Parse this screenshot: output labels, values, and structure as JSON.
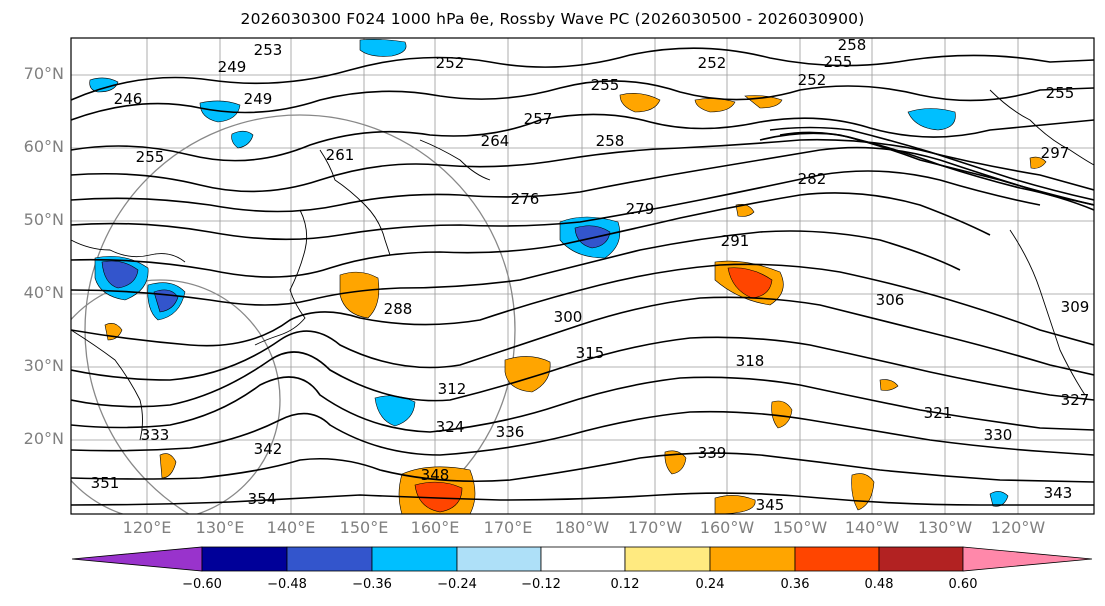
{
  "map": {
    "title": "2026030300 F024 1000 hPa θe, Rossby Wave PC (2026030500 - 2026030900)",
    "lat_labels": [
      "70°N",
      "60°N",
      "50°N",
      "40°N",
      "30°N",
      "20°N"
    ],
    "lon_labels": [
      "120°E",
      "130°E",
      "140°E",
      "150°E",
      "160°E",
      "170°E",
      "180°W",
      "170°W",
      "160°W",
      "150°W",
      "140°W",
      "130°W",
      "120°W"
    ],
    "contour_labels": [
      "253",
      "258",
      "249",
      "252",
      "252",
      "255",
      "246",
      "249",
      "255",
      "252",
      "255",
      "257",
      "258",
      "264",
      "261",
      "255",
      "276",
      "279",
      "282",
      "291",
      "297",
      "288",
      "300",
      "306",
      "315",
      "318",
      "312",
      "321",
      "327",
      "324",
      "336",
      "330",
      "333",
      "342",
      "339",
      "348",
      "351",
      "354",
      "345",
      "343",
      "309"
    ],
    "colorbar": {
      "ticks": [
        "−0.60",
        "−0.48",
        "−0.36",
        "−0.24",
        "−0.12",
        "0.12",
        "0.24",
        "0.36",
        "0.48",
        "0.60"
      ],
      "colors": [
        "#9933cc",
        "#000099",
        "#3355cc",
        "#00bfff",
        "#aee0f8",
        "#ffffff",
        "#ffea80",
        "#ffa500",
        "#ff4500",
        "#b22222",
        "#ff88aa"
      ]
    }
  }
}
